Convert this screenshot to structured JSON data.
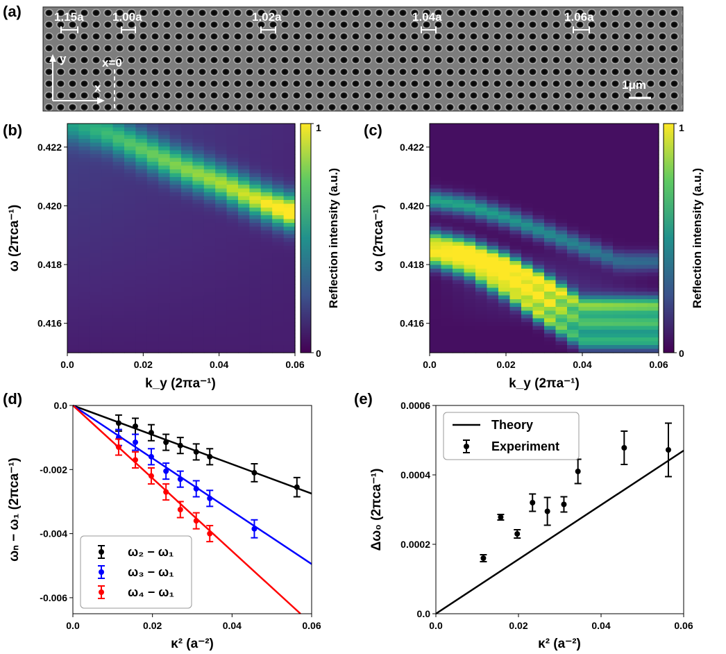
{
  "figure": {
    "panel_labels": [
      "(a)",
      "(b)",
      "(c)",
      "(d)",
      "(e)"
    ]
  },
  "sem": {
    "period_labels": [
      "1.15a",
      "1.00a",
      "1.02a",
      "1.04a",
      "1.06a"
    ],
    "axis_y": "y",
    "axis_x": "x",
    "origin_label": "x=0",
    "scale_bar": "1μm"
  },
  "colorbar": {
    "max_label": "1",
    "min_label": "0",
    "title": "Reflection intensity (a.u.)"
  },
  "chart_data": [
    {
      "id": "b",
      "type": "heatmap",
      "title": "",
      "xlabel": "k_y (2πa⁻¹)",
      "ylabel": "ω (2πca⁻¹)",
      "xlim": [
        0.0,
        0.06
      ],
      "ylim": [
        0.415,
        0.4228
      ],
      "xticks": [
        "0.0",
        "0.02",
        "0.04",
        "0.06"
      ],
      "yticks": [
        "0.416",
        "0.418",
        "0.420",
        "0.422"
      ],
      "colormap": "viridis",
      "colorbar_range": [
        0,
        1
      ],
      "bands": [
        {
          "k": [
            0.0,
            0.01,
            0.02,
            0.03,
            0.04,
            0.05,
            0.058
          ],
          "omega": [
            0.4228,
            0.4225,
            0.4219,
            0.4213,
            0.4208,
            0.4202,
            0.4198
          ],
          "peak": [
            0.35,
            0.5,
            0.6,
            0.68,
            0.75,
            0.85,
            1.0
          ]
        }
      ]
    },
    {
      "id": "c",
      "type": "heatmap",
      "title": "",
      "xlabel": "k_y (2πa⁻¹)",
      "ylabel": "ω (2πca⁻¹)",
      "xlim": [
        0.0,
        0.06
      ],
      "ylim": [
        0.415,
        0.4228
      ],
      "xticks": [
        "0.0",
        "0.02",
        "0.04",
        "0.06"
      ],
      "yticks": [
        "0.416",
        "0.418",
        "0.420",
        "0.422"
      ],
      "colormap": "viridis",
      "colorbar_range": [
        0,
        1
      ],
      "bands": [
        {
          "k": [
            0.0,
            0.01,
            0.02,
            0.03,
            0.04,
            0.05
          ],
          "omega": [
            0.4202,
            0.42,
            0.4196,
            0.4191,
            0.4186,
            0.4181
          ],
          "peak": [
            0.55,
            0.55,
            0.5,
            0.45,
            0.4,
            0.3
          ]
        },
        {
          "k": [
            0.0,
            0.01,
            0.02,
            0.03,
            0.04
          ],
          "omega": [
            0.4189,
            0.4186,
            0.4181,
            0.4174,
            0.4166
          ],
          "peak": [
            0.7,
            0.8,
            0.9,
            0.95,
            0.75
          ]
        },
        {
          "k": [
            0.0,
            0.01,
            0.02,
            0.03,
            0.04
          ],
          "omega": [
            0.4185,
            0.4182,
            0.4176,
            0.4168,
            0.416
          ],
          "peak": [
            0.6,
            0.7,
            0.85,
            0.9,
            0.65
          ]
        },
        {
          "k": [
            0.0,
            0.01,
            0.02,
            0.03,
            0.04
          ],
          "omega": [
            0.4182,
            0.4178,
            0.4171,
            0.4162,
            0.4154
          ],
          "peak": [
            0.55,
            0.65,
            0.75,
            0.85,
            0.6
          ]
        }
      ]
    },
    {
      "id": "d",
      "type": "scatter",
      "title": "",
      "xlabel": "κ² (a⁻²)",
      "ylabel": "ωₙ − ω₁ (2πca⁻¹)",
      "xlim": [
        0.0,
        0.06
      ],
      "ylim": [
        -0.0065,
        0.0
      ],
      "xticks": [
        "0.0",
        "0.02",
        "0.04",
        "0.06"
      ],
      "yticks": [
        "0.0",
        "-0.002",
        "-0.004",
        "-0.006"
      ],
      "legend": "bottom-left",
      "series": [
        {
          "name": "ω₂ − ω₁",
          "color": "#000000",
          "x": [
            0.0115,
            0.0157,
            0.0197,
            0.0234,
            0.027,
            0.031,
            0.0344,
            0.0456,
            0.0563
          ],
          "y": [
            -0.00055,
            -0.00065,
            -0.00085,
            -0.00115,
            -0.00125,
            -0.00145,
            -0.0016,
            -0.0021,
            -0.00255
          ],
          "err": [
            0.00025,
            0.00025,
            0.00025,
            0.00025,
            0.00025,
            0.00025,
            0.00025,
            0.00028,
            0.0003
          ],
          "fit_end": [
            0.06,
            -0.00275
          ]
        },
        {
          "name": "ω₃ − ω₁",
          "color": "#0000ff",
          "x": [
            0.0115,
            0.0157,
            0.0197,
            0.0234,
            0.027,
            0.031,
            0.0344,
            0.0456
          ],
          "y": [
            -0.001,
            -0.00115,
            -0.0016,
            -0.00205,
            -0.0023,
            -0.0026,
            -0.0029,
            -0.00385
          ],
          "err": [
            0.00025,
            0.00025,
            0.00025,
            0.00025,
            0.00025,
            0.00025,
            0.00025,
            0.00028
          ],
          "fit_end": [
            0.06,
            -0.00495
          ]
        },
        {
          "name": "ω₄ − ω₁",
          "color": "#ff0000",
          "x": [
            0.0115,
            0.0157,
            0.0197,
            0.0234,
            0.027,
            0.031,
            0.0344
          ],
          "y": [
            -0.0013,
            -0.0017,
            -0.0022,
            -0.0027,
            -0.00325,
            -0.0036,
            -0.004
          ],
          "err": [
            0.00025,
            0.00025,
            0.00025,
            0.00025,
            0.00025,
            0.00025,
            0.00025
          ],
          "fit_end": [
            0.0572,
            -0.0065
          ]
        }
      ]
    },
    {
      "id": "e",
      "type": "scatter",
      "title": "",
      "xlabel": "κ² (a⁻²)",
      "ylabel": "Δω₀ (2πca⁻¹)",
      "xlim": [
        0.0,
        0.06
      ],
      "ylim": [
        0.0,
        0.0006
      ],
      "xticks": [
        "0.0",
        "0.02",
        "0.04",
        "0.06"
      ],
      "yticks": [
        "0.0",
        "0.0002",
        "0.0004",
        "0.0006"
      ],
      "legend": "top-left",
      "series": [
        {
          "name": "Theory",
          "kind": "line",
          "color": "#000000",
          "x": [
            0.0,
            0.06
          ],
          "y": [
            0.0,
            0.00047
          ]
        },
        {
          "name": "Experiment",
          "kind": "errorbar",
          "color": "#000000",
          "x": [
            0.0115,
            0.0157,
            0.0197,
            0.0234,
            0.027,
            0.031,
            0.0344,
            0.0456,
            0.0563
          ],
          "y": [
            0.00016,
            0.000278,
            0.00023,
            0.00032,
            0.000295,
            0.000315,
            0.00041,
            0.000478,
            0.000472
          ],
          "err": [
            1e-05,
            8e-06,
            1.2e-05,
            2.5e-05,
            4e-05,
            2.2e-05,
            3.5e-05,
            4.8e-05,
            7.7e-05
          ]
        }
      ]
    }
  ]
}
